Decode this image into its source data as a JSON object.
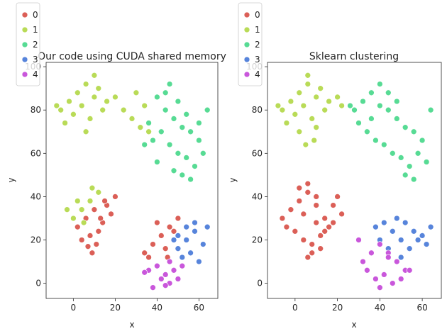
{
  "chart_data": [
    {
      "type": "scatter",
      "title": "Our code using CUDA shared memory",
      "xlabel": "x",
      "ylabel": "y",
      "xlim": [
        -13,
        69
      ],
      "ylim": [
        -7,
        102
      ],
      "xticks": [
        0,
        20,
        40,
        60
      ],
      "yticks": [
        0,
        20,
        40,
        60,
        80,
        100
      ],
      "legend": {
        "placement": "upper-left",
        "entries": [
          "0",
          "1",
          "2",
          "3",
          "4"
        ]
      },
      "series": [
        {
          "name": "0",
          "color": "#db5f57",
          "x": [
            2,
            6,
            10,
            14,
            18,
            8,
            12,
            4,
            16,
            20,
            7,
            11,
            15,
            9,
            13,
            38,
            42,
            46,
            50,
            36,
            40,
            44,
            48,
            34,
            45
          ],
          "y": [
            26,
            30,
            34,
            28,
            32,
            22,
            24,
            20,
            36,
            40,
            17,
            18,
            38,
            14,
            30,
            18,
            22,
            26,
            30,
            12,
            28,
            16,
            24,
            14,
            12
          ]
        },
        {
          "name": "1",
          "color": "#b9db57",
          "x": [
            -6,
            -2,
            2,
            6,
            10,
            14,
            -4,
            0,
            4,
            8,
            12,
            -8,
            16,
            20,
            24,
            28,
            32,
            30,
            34,
            36,
            0,
            4,
            8,
            12,
            -3,
            5,
            9,
            2,
            6,
            10
          ],
          "y": [
            80,
            84,
            88,
            92,
            86,
            80,
            74,
            78,
            82,
            76,
            90,
            82,
            84,
            86,
            80,
            76,
            72,
            88,
            82,
            70,
            30,
            34,
            38,
            42,
            34,
            28,
            44,
            38,
            70,
            96
          ]
        },
        {
          "name": "2",
          "color": "#57db94",
          "x": [
            40,
            44,
            48,
            52,
            56,
            60,
            42,
            46,
            50,
            54,
            58,
            62,
            38,
            36,
            40,
            48,
            52,
            56,
            44,
            50,
            54,
            60,
            46,
            34,
            64
          ],
          "y": [
            86,
            80,
            76,
            72,
            70,
            66,
            70,
            64,
            60,
            58,
            54,
            60,
            66,
            74,
            56,
            52,
            50,
            48,
            88,
            84,
            78,
            74,
            92,
            64,
            80
          ]
        },
        {
          "name": "3",
          "color": "#5784db",
          "x": [
            50,
            54,
            58,
            62,
            52,
            56,
            60,
            48,
            54,
            58,
            64,
            50
          ],
          "y": [
            16,
            20,
            24,
            18,
            12,
            14,
            10,
            20,
            26,
            28,
            26,
            22
          ]
        },
        {
          "name": "4",
          "color": "#c957db",
          "x": [
            36,
            40,
            44,
            48,
            52,
            38,
            42,
            46,
            50,
            34,
            46,
            44
          ],
          "y": [
            6,
            8,
            4,
            6,
            8,
            -2,
            2,
            0,
            2,
            5,
            10,
            -1
          ]
        }
      ]
    },
    {
      "type": "scatter",
      "title": "Sklearn clustering",
      "xlabel": "x",
      "ylabel": "y",
      "xlim": [
        -13,
        69
      ],
      "ylim": [
        -7,
        102
      ],
      "xticks": [
        0,
        20,
        40,
        60
      ],
      "yticks": [
        0,
        20,
        40,
        60,
        80,
        100
      ],
      "legend": {
        "placement": "upper-left",
        "entries": [
          "0",
          "1",
          "2",
          "3",
          "4"
        ]
      },
      "series": [
        {
          "name": "0",
          "color": "#db5f57",
          "x": [
            -6,
            -2,
            2,
            6,
            10,
            14,
            18,
            22,
            0,
            4,
            8,
            12,
            16,
            20,
            2,
            6,
            10,
            14,
            8,
            12,
            -4,
            18,
            4,
            10,
            6
          ],
          "y": [
            30,
            34,
            38,
            42,
            36,
            30,
            28,
            32,
            24,
            20,
            18,
            22,
            26,
            40,
            44,
            46,
            28,
            24,
            14,
            16,
            26,
            36,
            32,
            40,
            12
          ]
        },
        {
          "name": "1",
          "color": "#b9db57",
          "x": [
            -6,
            -2,
            2,
            6,
            10,
            14,
            -4,
            0,
            4,
            8,
            12,
            -8,
            16,
            20,
            22,
            2,
            6,
            10,
            5,
            9
          ],
          "y": [
            80,
            84,
            88,
            92,
            86,
            80,
            74,
            78,
            82,
            76,
            90,
            82,
            84,
            86,
            82,
            70,
            96,
            72,
            64,
            66
          ]
        },
        {
          "name": "2",
          "color": "#57db94",
          "x": [
            28,
            32,
            36,
            40,
            44,
            48,
            52,
            56,
            60,
            30,
            34,
            38,
            42,
            46,
            50,
            54,
            58,
            62,
            36,
            40,
            44,
            48,
            52,
            56,
            64,
            26
          ],
          "y": [
            80,
            84,
            88,
            82,
            80,
            76,
            72,
            70,
            66,
            74,
            70,
            66,
            64,
            60,
            58,
            54,
            60,
            56,
            76,
            92,
            88,
            84,
            50,
            48,
            80,
            82
          ]
        },
        {
          "name": "3",
          "color": "#5784db",
          "x": [
            38,
            42,
            46,
            50,
            54,
            58,
            62,
            40,
            44,
            48,
            52,
            56,
            60,
            50,
            64
          ],
          "y": [
            26,
            28,
            24,
            20,
            16,
            20,
            18,
            20,
            16,
            30,
            28,
            24,
            22,
            12,
            26
          ]
        },
        {
          "name": "4",
          "color": "#c957db",
          "x": [
            32,
            36,
            40,
            44,
            48,
            52,
            34,
            38,
            42,
            46,
            50,
            54,
            40,
            44,
            30
          ],
          "y": [
            10,
            14,
            18,
            14,
            10,
            6,
            6,
            2,
            4,
            0,
            2,
            6,
            -2,
            12,
            20
          ]
        }
      ]
    }
  ]
}
